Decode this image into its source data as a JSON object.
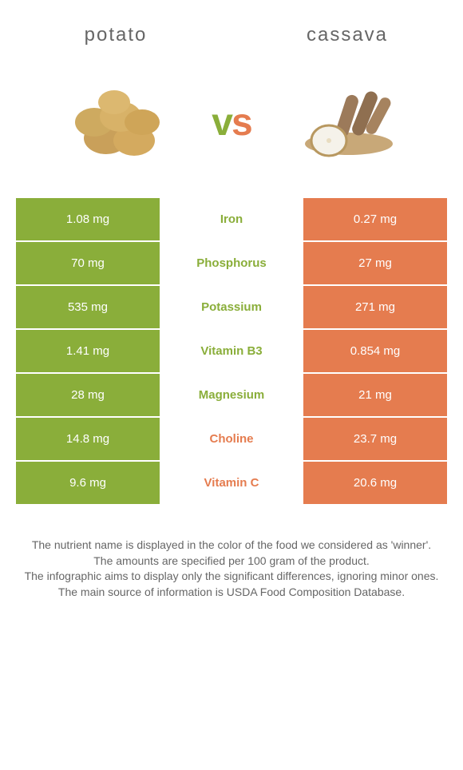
{
  "header": {
    "left": "potato",
    "right": "cassava"
  },
  "vs": {
    "v": "v",
    "s": "s"
  },
  "colors": {
    "left_bg": "#8aae3a",
    "right_bg": "#e57c4f",
    "left_text": "#ffffff",
    "right_text": "#ffffff",
    "winner_left": "#8aae3a",
    "winner_right": "#e57c4f",
    "vs_v": "#8aae3a",
    "vs_s": "#e57c4f"
  },
  "rows": [
    {
      "left": "1.08 mg",
      "label": "Iron",
      "right": "0.27 mg",
      "winner": "left"
    },
    {
      "left": "70 mg",
      "label": "Phosphorus",
      "right": "27 mg",
      "winner": "left"
    },
    {
      "left": "535 mg",
      "label": "Potassium",
      "right": "271 mg",
      "winner": "left"
    },
    {
      "left": "1.41 mg",
      "label": "Vitamin B3",
      "right": "0.854 mg",
      "winner": "left"
    },
    {
      "left": "28 mg",
      "label": "Magnesium",
      "right": "21 mg",
      "winner": "left"
    },
    {
      "left": "14.8 mg",
      "label": "Choline",
      "right": "23.7 mg",
      "winner": "right"
    },
    {
      "left": "9.6 mg",
      "label": "Vitamin C",
      "right": "20.6 mg",
      "winner": "right"
    }
  ],
  "footer": {
    "l1": "The nutrient name is displayed in the color of the food we considered as 'winner'.",
    "l2": "The amounts are specified per 100 gram of the product.",
    "l3": "The infographic aims to display only the significant differences, ignoring minor ones.",
    "l4": "The main source of information is USDA Food Composition Database."
  }
}
